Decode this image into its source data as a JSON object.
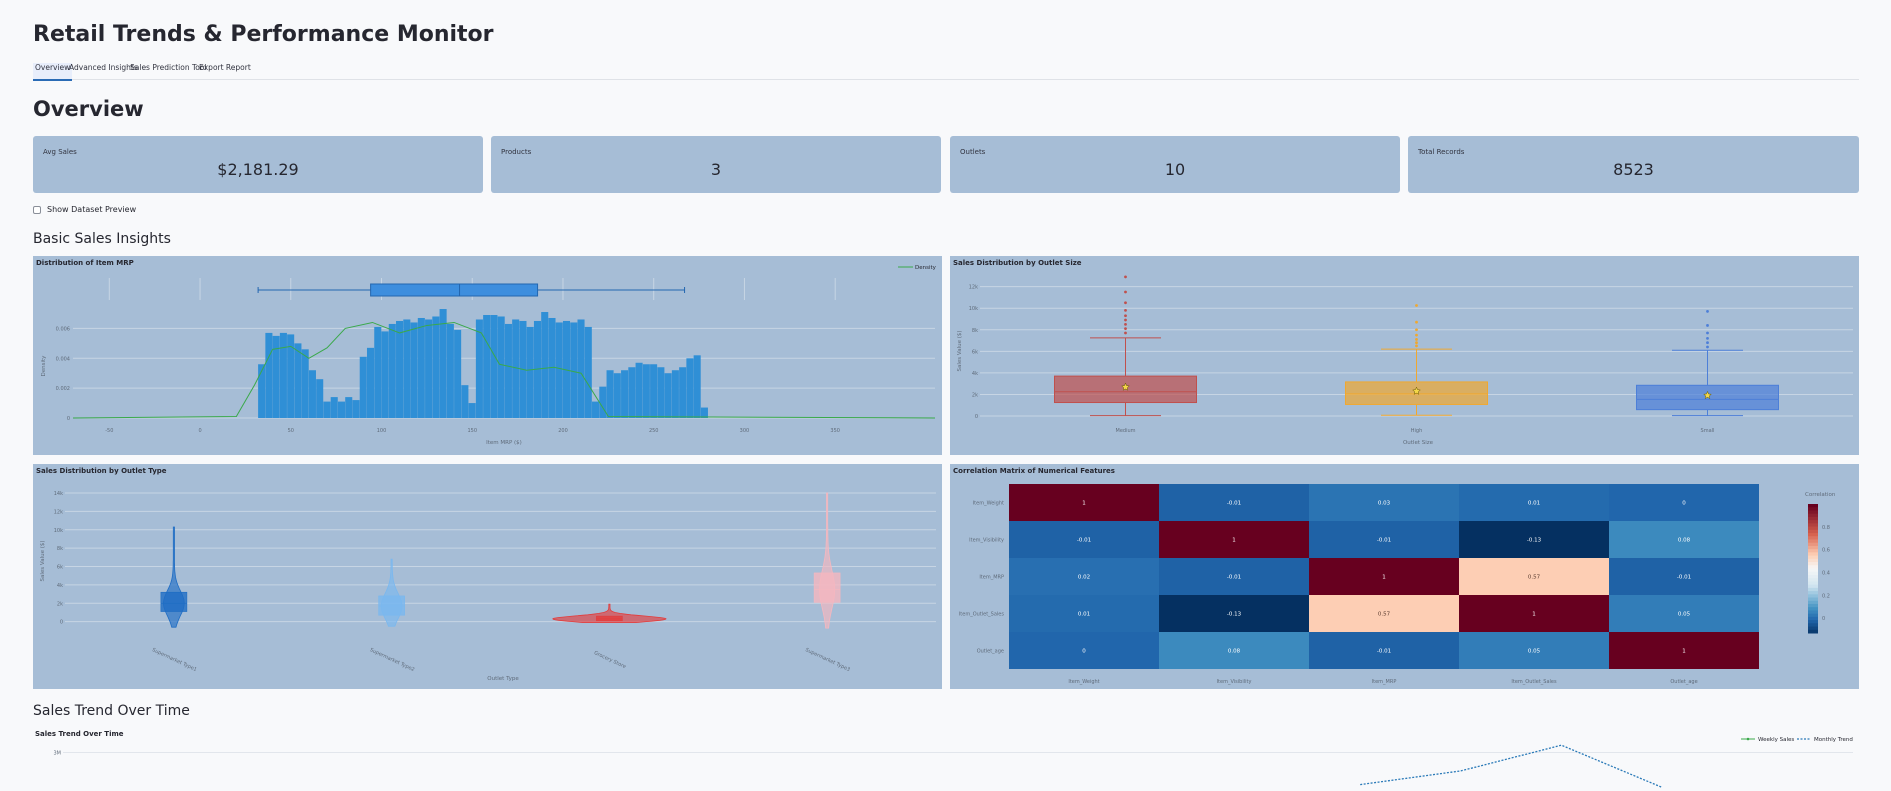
{
  "app": {
    "title": "Retail Trends & Performance Monitor"
  },
  "tabs": [
    {
      "label": "Overview",
      "active": true
    },
    {
      "label": "Advanced Insights",
      "active": false
    },
    {
      "label": "Sales Prediction Tool",
      "active": false
    },
    {
      "label": "Export Report",
      "active": false
    }
  ],
  "page": {
    "heading": "Overview"
  },
  "metrics": [
    {
      "label": "Avg Sales",
      "value": "$2,181.29"
    },
    {
      "label": "Products",
      "value": "3"
    },
    {
      "label": "Outlets",
      "value": "10"
    },
    {
      "label": "Total Records",
      "value": "8523"
    }
  ],
  "preview": {
    "label": "Show Dataset Preview",
    "checked": false
  },
  "basic": {
    "heading": "Basic Sales Insights"
  },
  "trend": {
    "heading": "Sales Trend Over Time"
  },
  "colors": {
    "panel": "#a6bdd6",
    "accent": "#2a6bb5"
  },
  "chart_data": [
    {
      "type": "bar",
      "title": "Distribution of Item MRP",
      "xlabel": "Item MRP ($)",
      "ylabel": "Density",
      "legend": [
        "Density"
      ],
      "legend_position": "top-right",
      "x_ticks": [
        "-50",
        "0",
        "50",
        "100",
        "150",
        "200",
        "250",
        "300",
        "350"
      ],
      "y_ticks": [
        "0",
        "0.002",
        "0.004",
        "0.006"
      ],
      "ylim": [
        0,
        0.0069
      ],
      "bins_start": 32,
      "bin_width": 4,
      "values": [
        0.0036,
        0.0057,
        0.0055,
        0.0057,
        0.0056,
        0.005,
        0.0046,
        0.0032,
        0.0026,
        0.0011,
        0.0014,
        0.0011,
        0.0014,
        0.0012,
        0.0041,
        0.0047,
        0.0061,
        0.0058,
        0.0063,
        0.0065,
        0.0066,
        0.0064,
        0.0067,
        0.0066,
        0.0068,
        0.0073,
        0.0063,
        0.0059,
        0.0022,
        0.001,
        0.0066,
        0.0069,
        0.0069,
        0.0068,
        0.0063,
        0.0066,
        0.0065,
        0.0061,
        0.0065,
        0.0071,
        0.0067,
        0.0064,
        0.0065,
        0.0064,
        0.0066,
        0.0061,
        0.0011,
        0.0021,
        0.0032,
        0.003,
        0.0032,
        0.0034,
        0.0037,
        0.0036,
        0.0036,
        0.0034,
        0.003,
        0.0032,
        0.0034,
        0.004,
        0.0042,
        0.0007
      ],
      "density_curve": [
        [
          -70,
          0
        ],
        [
          20,
          0.0001
        ],
        [
          30,
          0.0022
        ],
        [
          40,
          0.0046
        ],
        [
          50,
          0.0048
        ],
        [
          60,
          0.004
        ],
        [
          70,
          0.0047
        ],
        [
          80,
          0.006
        ],
        [
          95,
          0.0064
        ],
        [
          110,
          0.0057
        ],
        [
          125,
          0.0062
        ],
        [
          140,
          0.0064
        ],
        [
          155,
          0.0057
        ],
        [
          165,
          0.0036
        ],
        [
          180,
          0.0032
        ],
        [
          195,
          0.0034
        ],
        [
          210,
          0.003
        ],
        [
          225,
          0.0001
        ],
        [
          405,
          0
        ]
      ],
      "box": {
        "min": 32,
        "q1": 94,
        "median": 143,
        "q3": 186,
        "max": 267
      }
    },
    {
      "type": "box",
      "title": "Sales Distribution by Outlet Size",
      "xlabel": "Outlet Size",
      "ylabel": "Sales Value ($)",
      "categories": [
        "Medium",
        "High",
        "Small"
      ],
      "y_ticks": [
        "0",
        "2k",
        "4k",
        "6k",
        "8k",
        "10k",
        "12k"
      ],
      "ylim": [
        0,
        12800
      ],
      "series": [
        {
          "name": "Medium",
          "min": 34,
          "q1": 1250,
          "median": 2250,
          "q3": 3700,
          "max": 7250,
          "mean": 2680,
          "color": "#c0504d",
          "outliers": [
            7700,
            8100,
            8500,
            8900,
            9300,
            9800,
            10500,
            11500,
            12900
          ]
        },
        {
          "name": "High",
          "min": 73,
          "q1": 1070,
          "median": 2050,
          "q3": 3160,
          "max": 6200,
          "mean": 2300,
          "color": "#f0a830",
          "outliers": [
            6500,
            6800,
            7100,
            7500,
            8000,
            8700,
            10250
          ]
        },
        {
          "name": "Small",
          "min": 33,
          "q1": 590,
          "median": 1540,
          "q3": 2850,
          "max": 6100,
          "mean": 1910,
          "color": "#4d7fd8",
          "outliers": [
            6400,
            6800,
            7200,
            7700,
            8400,
            9700
          ]
        }
      ]
    },
    {
      "type": "violin",
      "title": "Sales Distribution by Outlet Type",
      "xlabel": "Outlet Type",
      "ylabel": "Sales Value ($)",
      "categories": [
        "Supermarket Type1",
        "Supermarket Type2",
        "Grocery Store",
        "Supermarket Type3"
      ],
      "y_ticks": [
        "0",
        "2k",
        "4k",
        "6k",
        "8k",
        "10k",
        "12k",
        "14k"
      ],
      "ylim": [
        -800,
        14000
      ],
      "series": [
        {
          "name": "Supermarket Type1",
          "color": "#1f6dc4",
          "min": -600,
          "max": 10300,
          "q1": 1100,
          "median": 2000,
          "q3": 3200,
          "width": 0.7
        },
        {
          "name": "Supermarket Type2",
          "color": "#7ab8ef",
          "min": -500,
          "max": 6800,
          "q1": 700,
          "median": 1700,
          "q3": 2800,
          "width": 0.7
        },
        {
          "name": "Grocery Store",
          "color": "#e23d3d",
          "min": -100,
          "max": 1900,
          "q1": 100,
          "median": 300,
          "q3": 600,
          "width": 4.0
        },
        {
          "name": "Supermarket Type3",
          "color": "#f5b7bf",
          "min": -700,
          "max": 14000,
          "q1": 2100,
          "median": 3500,
          "q3": 5300,
          "width": 0.5
        }
      ]
    },
    {
      "type": "heatmap",
      "title": "Correlation Matrix of Numerical Features",
      "xlabel": "",
      "ylabel": "",
      "colorbar_title": "Correlation",
      "colorbar_ticks": [
        "0",
        "0.2",
        "0.4",
        "0.6",
        "0.8"
      ],
      "labels": [
        "Item_Weight",
        "Item_Visibility",
        "Item_MRP",
        "Item_Outlet_Sales",
        "Outlet_age"
      ],
      "cells": [
        [
          "1",
          "-0.01",
          "0.03",
          "0.01",
          "0"
        ],
        [
          "-0.01",
          "1",
          "-0.01",
          "-0.13",
          "0.08"
        ],
        [
          "0.02",
          "-0.01",
          "1",
          "0.57",
          "-0.01"
        ],
        [
          "0.01",
          "-0.13",
          "0.57",
          "1",
          "0.05"
        ],
        [
          "0",
          "0.08",
          "-0.01",
          "0.05",
          "1"
        ]
      ],
      "values": [
        [
          1,
          -0.01,
          0.03,
          0.01,
          0
        ],
        [
          -0.01,
          1,
          -0.01,
          -0.13,
          0.08
        ],
        [
          0.02,
          -0.01,
          1,
          0.57,
          -0.01
        ],
        [
          0.01,
          -0.13,
          0.57,
          1,
          0.05
        ],
        [
          0,
          0.08,
          -0.01,
          0.05,
          1
        ]
      ]
    },
    {
      "type": "line",
      "title": "Sales Trend Over Time",
      "xlabel": "",
      "ylabel": "",
      "legend": [
        "Weekly Sales",
        "Monthly Trend"
      ],
      "legend_position": "top-right",
      "y_ticks": [
        "3M"
      ],
      "series": [
        {
          "name": "Monthly Trend",
          "x": [
            0,
            1,
            2,
            3
          ],
          "y": [
            2.65,
            2.8,
            3.08,
            2.62
          ]
        }
      ],
      "xlim": [
        -12.9,
        4.9
      ],
      "ylim": [
        2.58,
        3.29
      ]
    }
  ]
}
